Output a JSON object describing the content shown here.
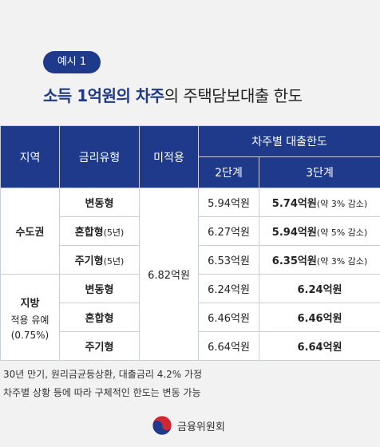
{
  "badge": "예시 1",
  "title": {
    "highlight": "소득 1억원의 차주",
    "rest": "의 주택담보대출 한도"
  },
  "table": {
    "headers": {
      "region": "지역",
      "rate_type": "금리유형",
      "not_applied": "미적용",
      "by_borrower": "차주별 대출한도",
      "stage2": "2단계",
      "stage3": "3단계"
    },
    "metro": {
      "name": "수도권",
      "rows": [
        {
          "type": "변동형",
          "type_sub": "",
          "stage2": "5.94억원",
          "stage3": "5.74억원",
          "stage3_note": "(약 3% 감소)"
        },
        {
          "type": "혼합형",
          "type_sub": "(5년)",
          "stage2": "6.27억원",
          "stage3": "5.94억원",
          "stage3_note": "(약 5% 감소)"
        },
        {
          "type": "주기형",
          "type_sub": "(5년)",
          "stage2": "6.53억원",
          "stage3": "6.35억원",
          "stage3_note": "(약 3% 감소)"
        }
      ]
    },
    "not_applied_value": "6.82억원",
    "local": {
      "name": "지방",
      "sub1": "적용 유예",
      "sub2": "(0.75%)",
      "rows": [
        {
          "type": "변동형",
          "stage2": "6.24억원",
          "stage3": "6.24억원"
        },
        {
          "type": "혼합형",
          "stage2": "6.46억원",
          "stage3": "6.46억원"
        },
        {
          "type": "주기형",
          "stage2": "6.64억원",
          "stage3": "6.64억원"
        }
      ]
    }
  },
  "notes": [
    "30년 만기, 원리금균등상환, 대출금리 4.2% 가정",
    "차주별 상황 등에 따라 구체적인 한도는 변동 가능"
  ],
  "footer": {
    "org": "금융위원회",
    "icon": "taegeuk-emblem-icon"
  },
  "colors": {
    "accent": "#1f3a8a",
    "background": "#f2f2f2"
  }
}
